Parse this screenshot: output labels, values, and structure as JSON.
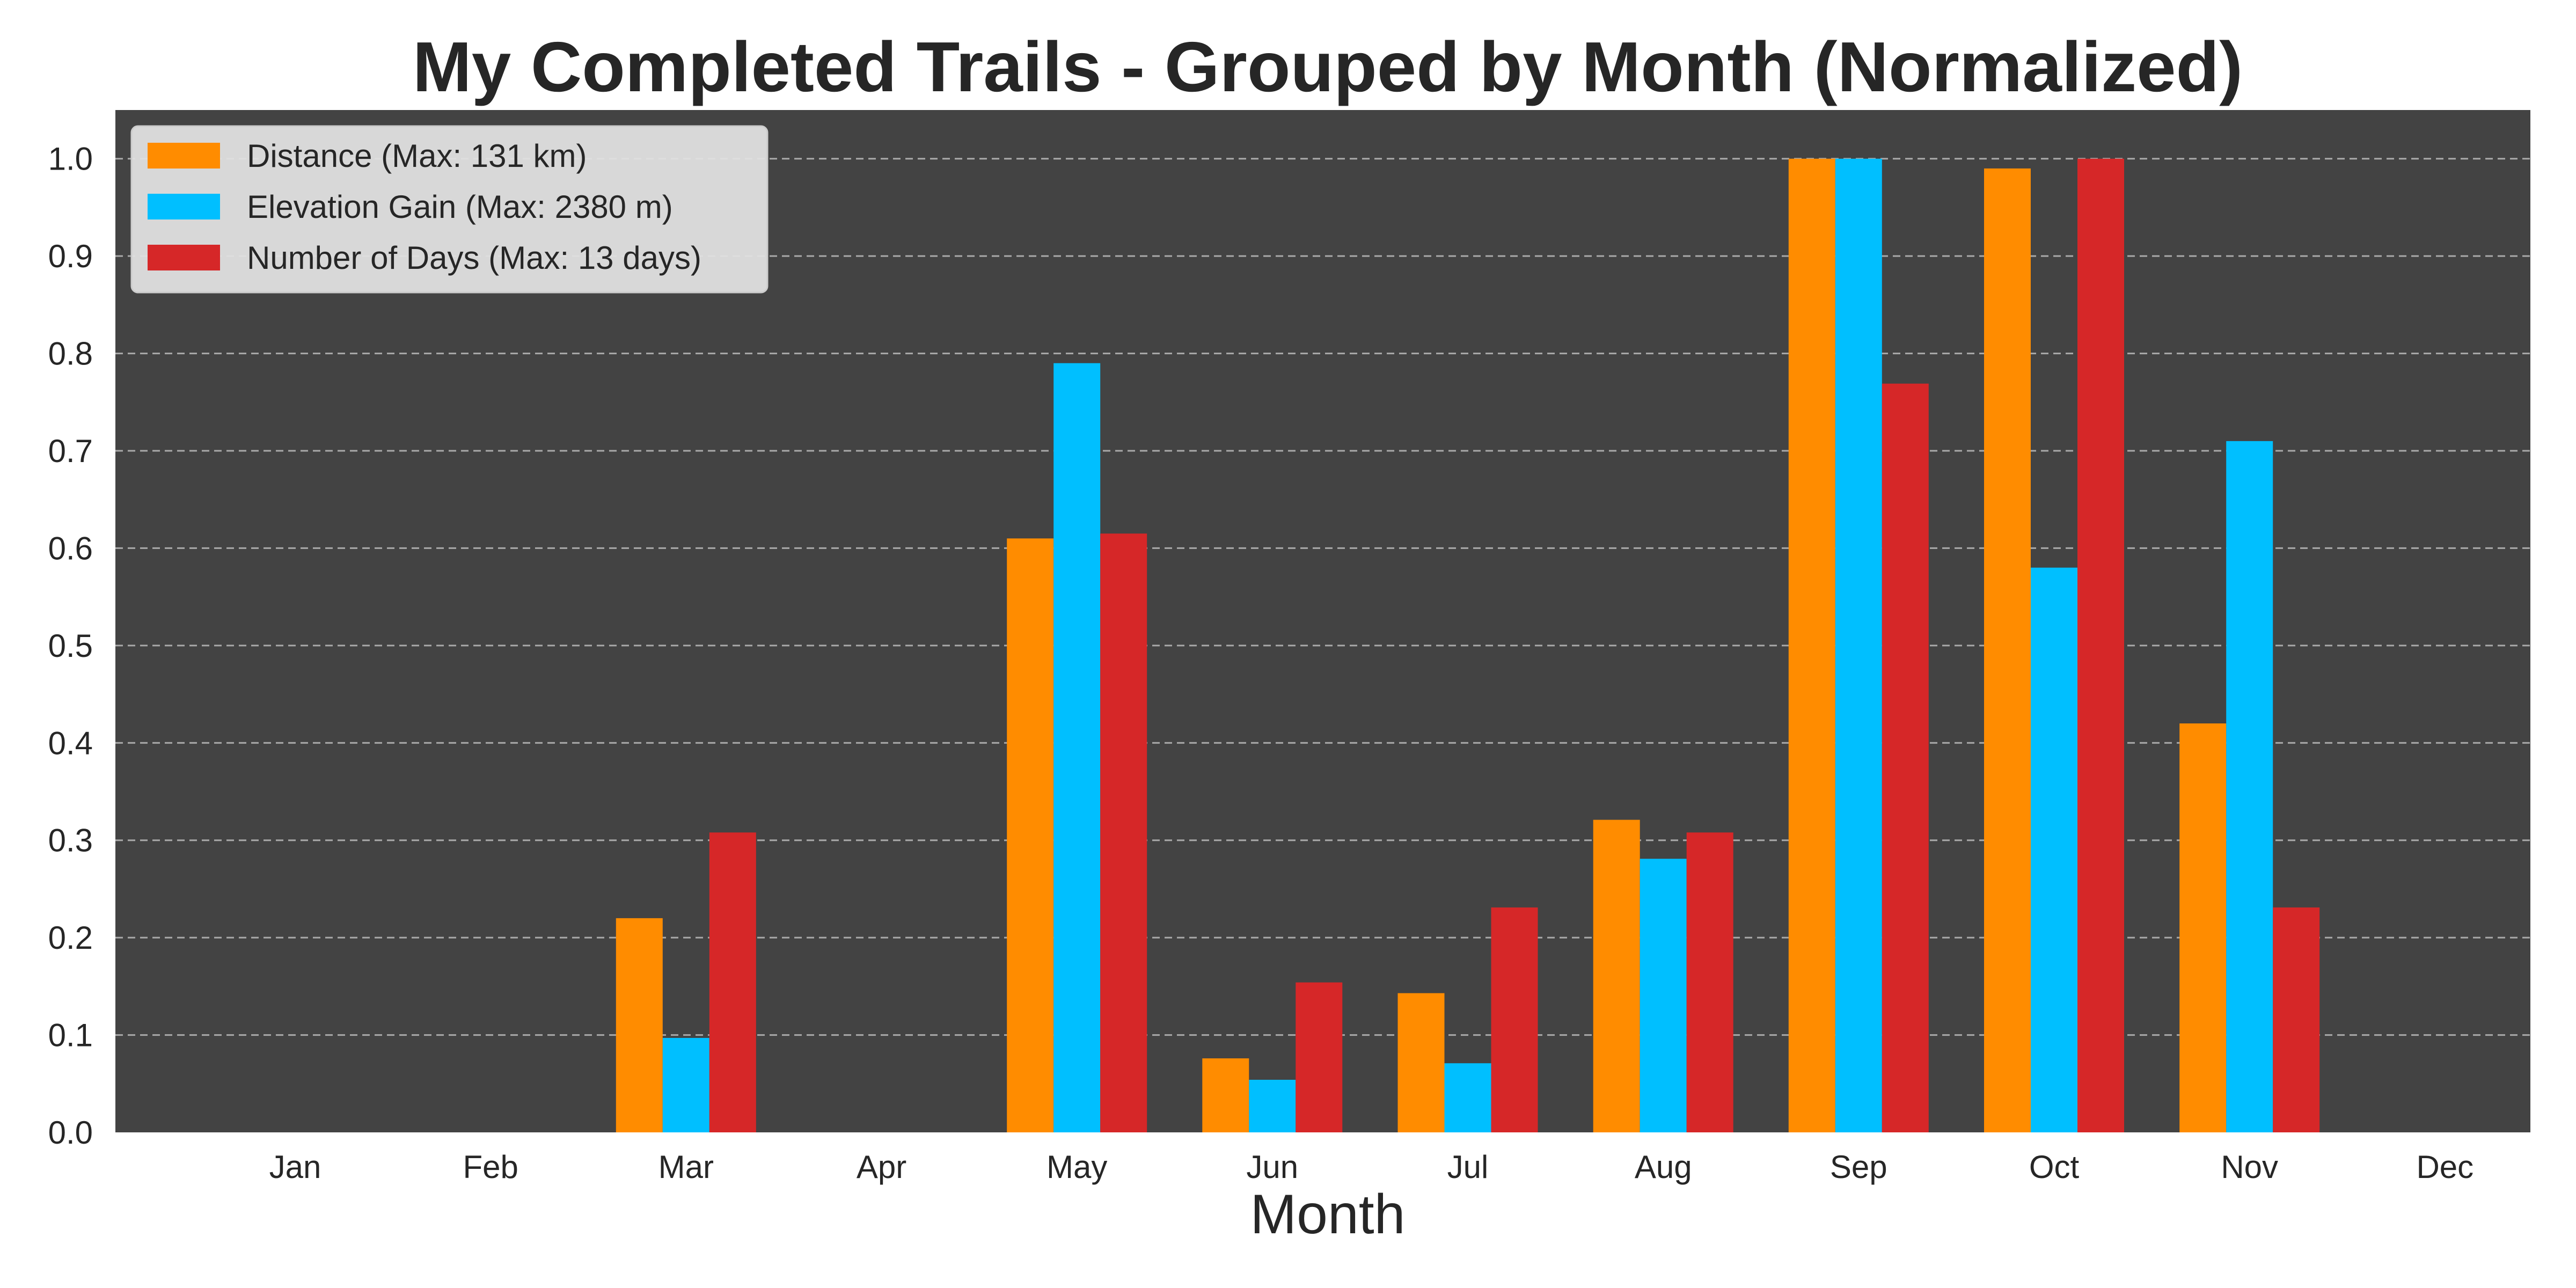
{
  "chart_data": {
    "type": "bar",
    "title": "My Completed Trails - Grouped by Month (Normalized)",
    "xlabel": "Month",
    "ylabel": "",
    "ylim": [
      0,
      1.05
    ],
    "yticks": [
      "0.0",
      "0.1",
      "0.2",
      "0.3",
      "0.4",
      "0.5",
      "0.6",
      "0.7",
      "0.8",
      "0.9",
      "1.0"
    ],
    "grid": true,
    "legend_position": "top-left",
    "categories": [
      "Jan",
      "Feb",
      "Mar",
      "Apr",
      "May",
      "Jun",
      "Jul",
      "Aug",
      "Sep",
      "Oct",
      "Nov",
      "Dec"
    ],
    "series": [
      {
        "name": "Distance (Max: 131 km)",
        "color": "#ff8c00",
        "values": [
          0,
          0,
          0.22,
          0,
          0.61,
          0.076,
          0.143,
          0.321,
          1.0,
          0.99,
          0.42,
          0
        ]
      },
      {
        "name": "Elevation Gain (Max: 2380 m)",
        "color": "#00bfff",
        "values": [
          0,
          0,
          0.097,
          0,
          0.79,
          0.054,
          0.071,
          0.281,
          1.0,
          0.58,
          0.71,
          0
        ]
      },
      {
        "name": "Number of Days (Max: 13 days)",
        "color": "#d62728",
        "values": [
          0,
          0,
          0.308,
          0,
          0.615,
          0.154,
          0.231,
          0.308,
          0.769,
          1.0,
          0.231,
          0
        ]
      }
    ]
  }
}
